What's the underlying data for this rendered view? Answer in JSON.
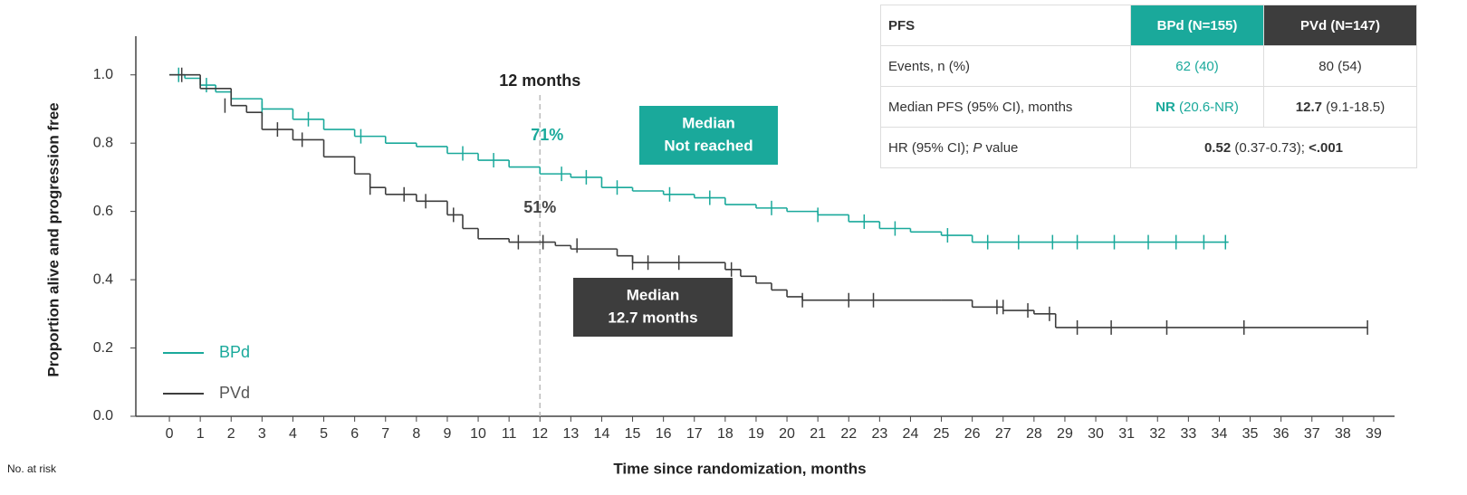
{
  "chart_data": {
    "type": "kaplan-meier",
    "ylabel": "Proportion alive and progression free",
    "xlabel": "Time since randomization, months",
    "xlim": [
      -0.5,
      39.5
    ],
    "ylim": [
      0,
      1.1
    ],
    "xticks": [
      0,
      1,
      2,
      3,
      4,
      5,
      6,
      7,
      8,
      9,
      10,
      11,
      12,
      13,
      14,
      15,
      16,
      17,
      18,
      19,
      20,
      21,
      22,
      23,
      24,
      25,
      26,
      27,
      28,
      29,
      30,
      31,
      32,
      33,
      34,
      35,
      36,
      37,
      38,
      39
    ],
    "yticks": [
      {
        "value": 0,
        "label": "0.0"
      },
      {
        "value": 0.2,
        "label": "0.2"
      },
      {
        "value": 0.4,
        "label": "0.4"
      },
      {
        "value": 0.6,
        "label": "0.6"
      },
      {
        "value": 0.8,
        "label": "0.8"
      },
      {
        "value": 1,
        "label": "1.0"
      }
    ],
    "legend": "lower left",
    "reference_x": 12,
    "reference_label": "12 months",
    "annotations": [
      "71%",
      "51%"
    ],
    "median_boxes": [
      [
        "Median",
        "Not reached"
      ],
      [
        "Median",
        "12.7 months"
      ]
    ],
    "at_risk_label": "No. at risk",
    "series": [
      {
        "name": "BPd",
        "color": "#1aa99b",
        "x": [
          0,
          0.5,
          1,
          1.5,
          2,
          3,
          4,
          5,
          6,
          7,
          8,
          9,
          10,
          11,
          12,
          13,
          14,
          15,
          16,
          17,
          18,
          19,
          20,
          21,
          22,
          23,
          24,
          25,
          26,
          34.3
        ],
        "values": [
          1.0,
          0.99,
          0.97,
          0.95,
          0.93,
          0.9,
          0.87,
          0.84,
          0.82,
          0.8,
          0.79,
          0.77,
          0.75,
          0.73,
          0.71,
          0.7,
          0.67,
          0.66,
          0.65,
          0.64,
          0.62,
          0.61,
          0.6,
          0.59,
          0.57,
          0.55,
          0.54,
          0.53,
          0.51,
          0.51
        ],
        "censor_x": [
          0.3,
          1.2,
          3.0,
          4.5,
          6.2,
          9.5,
          10.5,
          12.7,
          13.5,
          14.5,
          16.2,
          17.5,
          19.5,
          21.0,
          22.5,
          23.5,
          25.2,
          26.5,
          27.5,
          28.6,
          29.4,
          30.6,
          31.7,
          32.6,
          33.5,
          34.2
        ],
        "censor_y": [
          1.0,
          0.97,
          0.9,
          0.87,
          0.82,
          0.77,
          0.75,
          0.71,
          0.7,
          0.67,
          0.65,
          0.64,
          0.61,
          0.59,
          0.57,
          0.55,
          0.53,
          0.51,
          0.51,
          0.51,
          0.51,
          0.51,
          0.51,
          0.51,
          0.51,
          0.51
        ]
      },
      {
        "name": "PVd",
        "color": "#3d3d3d",
        "x": [
          0,
          1,
          2,
          2.5,
          3,
          4,
          5,
          6,
          6.5,
          7,
          8,
          9,
          9.5,
          10,
          11,
          12.5,
          13,
          14.5,
          15,
          18,
          18.5,
          19,
          19.5,
          20,
          20.5,
          25,
          26,
          27,
          28,
          28.7,
          38.8
        ],
        "values": [
          1.0,
          0.96,
          0.91,
          0.89,
          0.84,
          0.81,
          0.76,
          0.71,
          0.67,
          0.65,
          0.63,
          0.59,
          0.55,
          0.52,
          0.51,
          0.5,
          0.49,
          0.47,
          0.45,
          0.43,
          0.41,
          0.39,
          0.37,
          0.35,
          0.34,
          0.34,
          0.32,
          0.31,
          0.3,
          0.26,
          0.26
        ],
        "censor_x": [
          0.4,
          1.8,
          3.5,
          4.3,
          6.5,
          7.6,
          8.3,
          9.2,
          11.3,
          12.1,
          13.2,
          15.0,
          15.5,
          16.5,
          18.2,
          20.5,
          22.0,
          22.8,
          26.8,
          27.0,
          27.8,
          28.5,
          29.4,
          30.5,
          32.3,
          34.8,
          38.8
        ],
        "censor_y": [
          1.0,
          0.91,
          0.84,
          0.81,
          0.67,
          0.65,
          0.63,
          0.59,
          0.51,
          0.51,
          0.5,
          0.45,
          0.45,
          0.45,
          0.43,
          0.34,
          0.34,
          0.34,
          0.32,
          0.32,
          0.31,
          0.3,
          0.26,
          0.26,
          0.26,
          0.26,
          0.26
        ]
      }
    ]
  },
  "table": {
    "header": [
      "PFS",
      "BPd (N=155)",
      "PVd (N=147)"
    ],
    "rows": [
      {
        "label": "Events, n (%)",
        "bpd": "62 (40)",
        "pvd": "80 (54)"
      },
      {
        "label": "Median PFS (95% CI), months",
        "bpd_bold": "NR",
        "bpd": " (20.6-NR)",
        "pvd_bold": "12.7",
        "pvd": " (9.1-18.5)"
      },
      {
        "label_pre": "HR (95% CI); ",
        "label_italic": "P",
        "label_post": " value",
        "hr_bold": "0.52",
        "hr": " (0.37-0.73); ",
        "p_bold": "<.001"
      }
    ]
  }
}
